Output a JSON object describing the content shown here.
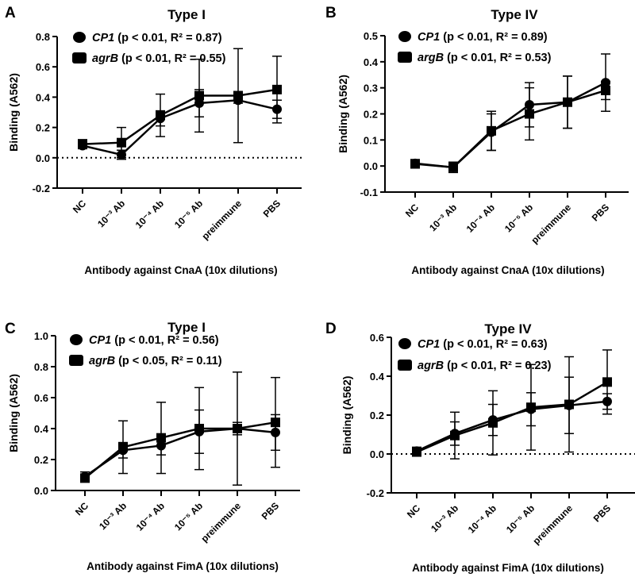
{
  "chart_data": [
    {
      "type": "line",
      "panel": "A",
      "title": "Type I",
      "xlabel": "Antibody against CnaA (10x dilutions)",
      "ylabel": "Binding (A562)",
      "ylim": [
        -0.2,
        0.8
      ],
      "yticks": [
        -0.2,
        0.0,
        0.2,
        0.4,
        0.6,
        0.8
      ],
      "zero_line": true,
      "categories": [
        "NC",
        "10⁻³ Ab",
        "10⁻⁴ Ab",
        "10⁻⁵ Ab",
        "preimmune",
        "PBS"
      ],
      "series": [
        {
          "name": "CP1",
          "stats": "(p < 0.01, R² = 0.87)",
          "marker": "circle",
          "values": [
            0.08,
            0.02,
            0.26,
            0.36,
            0.38,
            0.32
          ],
          "errors": [
            0.02,
            0.03,
            0.05,
            0.09,
            0.02,
            0.06
          ]
        },
        {
          "name": "agrB",
          "stats": "(p < 0.01, R² = 0.55)",
          "marker": "square",
          "values": [
            0.09,
            0.1,
            0.28,
            0.41,
            0.41,
            0.45
          ],
          "errors": [
            0.03,
            0.1,
            0.14,
            0.24,
            0.31,
            0.22
          ]
        }
      ]
    },
    {
      "type": "line",
      "panel": "B",
      "title": "Type IV",
      "xlabel": "Antibody against CnaA (10x dilutions)",
      "ylabel": "Binding (A562)",
      "ylim": [
        -0.1,
        0.5
      ],
      "yticks": [
        -0.1,
        0.0,
        0.1,
        0.2,
        0.3,
        0.4,
        0.5
      ],
      "zero_line": false,
      "categories": [
        "NC",
        "10⁻³ Ab",
        "10⁻⁴ Ab",
        "10⁻⁵ Ab",
        "preimmune",
        "PBS"
      ],
      "series": [
        {
          "name": "CP1",
          "stats": "(p < 0.01, R² = 0.89)",
          "marker": "circle",
          "values": [
            0.01,
            -0.005,
            0.13,
            0.235,
            0.245,
            0.32
          ],
          "errors": [
            0.015,
            0.02,
            0.07,
            0.085,
            0.1,
            0.11
          ]
        },
        {
          "name": "argB",
          "stats": "(p < 0.01, R² = 0.53)",
          "marker": "square",
          "values": [
            0.008,
            -0.005,
            0.135,
            0.2,
            0.245,
            0.29
          ],
          "errors": [
            0.01,
            0.015,
            0.075,
            0.1,
            0.1,
            0.035
          ]
        }
      ]
    },
    {
      "type": "line",
      "panel": "C",
      "title": "Type I",
      "xlabel": "Antibody against FimA (10x dilutions)",
      "ylabel": "Binding (A562)",
      "ylim": [
        0.0,
        1.0
      ],
      "yticks": [
        0.0,
        0.2,
        0.4,
        0.6,
        0.8,
        1.0
      ],
      "zero_line": false,
      "categories": [
        "NC",
        "10⁻³ Ab",
        "10⁻⁴ Ab",
        "10⁻⁵ Ab",
        "preimmune",
        "PBS"
      ],
      "series": [
        {
          "name": "CP1",
          "stats": "(p < 0.01, R² = 0.56)",
          "marker": "circle",
          "values": [
            0.09,
            0.26,
            0.29,
            0.38,
            0.4,
            0.375
          ],
          "errors": [
            0.03,
            0.05,
            0.06,
            0.14,
            0.04,
            0.115
          ]
        },
        {
          "name": "agrB",
          "stats": "(p < 0.05, R² = 0.11)",
          "marker": "square",
          "values": [
            0.08,
            0.28,
            0.34,
            0.4,
            0.4,
            0.44
          ],
          "errors": [
            0.02,
            0.17,
            0.23,
            0.265,
            0.365,
            0.29
          ]
        }
      ]
    },
    {
      "type": "line",
      "panel": "D",
      "title": "Type IV",
      "xlabel": "Antibody against FimA (10x dilutions)",
      "ylabel": "Binding (A562)",
      "ylim": [
        -0.2,
        0.6
      ],
      "yticks": [
        -0.2,
        0.0,
        0.2,
        0.4,
        0.6
      ],
      "zero_line": true,
      "categories": [
        "NC",
        "10⁻³ Ab",
        "10⁻⁴ Ab",
        "10⁻⁵ Ab",
        "preimmune",
        "PBS"
      ],
      "series": [
        {
          "name": "CP1",
          "stats": "(p < 0.01, R² = 0.63)",
          "marker": "circle",
          "values": [
            0.015,
            0.105,
            0.175,
            0.23,
            0.25,
            0.27
          ],
          "errors": [
            0.02,
            0.06,
            0.08,
            0.085,
            0.145,
            0.04
          ]
        },
        {
          "name": "agrB",
          "stats": "(p < 0.01, R² = 0.23)",
          "marker": "square",
          "values": [
            0.01,
            0.095,
            0.16,
            0.24,
            0.255,
            0.37
          ],
          "errors": [
            0.02,
            0.12,
            0.165,
            0.22,
            0.245,
            0.165
          ]
        }
      ]
    }
  ]
}
